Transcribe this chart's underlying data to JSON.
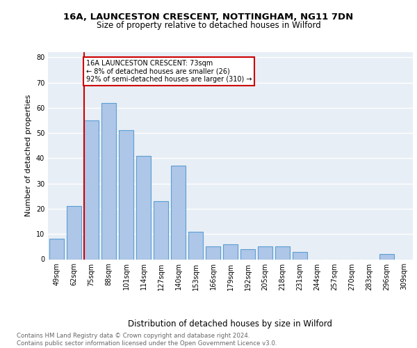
{
  "title_line1": "16A, LAUNCESTON CRESCENT, NOTTINGHAM, NG11 7DN",
  "title_line2": "Size of property relative to detached houses in Wilford",
  "xlabel": "Distribution of detached houses by size in Wilford",
  "ylabel": "Number of detached properties",
  "categories": [
    "49sqm",
    "62sqm",
    "75sqm",
    "88sqm",
    "101sqm",
    "114sqm",
    "127sqm",
    "140sqm",
    "153sqm",
    "166sqm",
    "179sqm",
    "192sqm",
    "205sqm",
    "218sqm",
    "231sqm",
    "244sqm",
    "257sqm",
    "270sqm",
    "283sqm",
    "296sqm",
    "309sqm"
  ],
  "values": [
    8,
    21,
    55,
    62,
    51,
    41,
    23,
    37,
    11,
    5,
    6,
    4,
    5,
    5,
    3,
    0,
    0,
    0,
    0,
    2,
    0
  ],
  "bar_color": "#aec6e8",
  "bar_edge_color": "#5a9fd4",
  "bar_linewidth": 0.8,
  "property_line_index": 2,
  "property_line_color": "#cc0000",
  "annotation_text": "16A LAUNCESTON CRESCENT: 73sqm\n← 8% of detached houses are smaller (26)\n92% of semi-detached houses are larger (310) →",
  "annotation_box_color": "#ffffff",
  "annotation_box_edge": "#cc0000",
  "ylim": [
    0,
    82
  ],
  "yticks": [
    0,
    10,
    20,
    30,
    40,
    50,
    60,
    70,
    80
  ],
  "footnote": "Contains HM Land Registry data © Crown copyright and database right 2024.\nContains public sector information licensed under the Open Government Licence v3.0.",
  "bg_color": "#e8eef5",
  "grid_color": "#ffffff",
  "title_fontsize": 9.5,
  "subtitle_fontsize": 8.5,
  "xlabel_fontsize": 8.5,
  "ylabel_fontsize": 8.0,
  "tick_fontsize": 7.0,
  "footnote_fontsize": 6.2,
  "footnote_color": "#666666"
}
